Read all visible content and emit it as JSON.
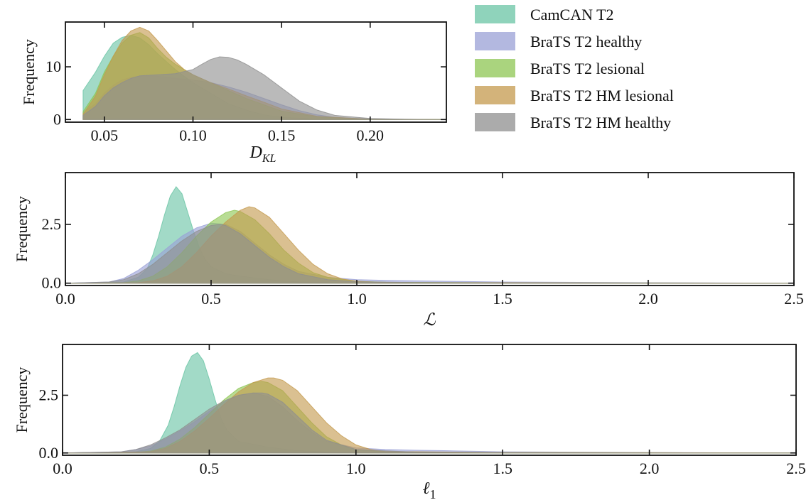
{
  "colors": {
    "CamCAN T2": "#69c4a4",
    "BraTS T2 healthy": "#9aa0d6",
    "BraTS T2 lesional": "#8dc653",
    "BraTS T2 HM lesional": "#c49a4e",
    "BraTS T2 HM healthy": "#8f8f8f"
  },
  "legend": {
    "entries": [
      "CamCAN T2",
      "BraTS T2 healthy",
      "BraTS T2 lesional",
      "BraTS T2 HM lesional",
      "BraTS T2 HM healthy"
    ]
  },
  "chart_data": [
    {
      "type": "area",
      "subtype": "density",
      "xlabel": "D_KL",
      "ylabel": "Frequency",
      "xlim": [
        0.028,
        0.243
      ],
      "ylim": [
        -0.5,
        18.5
      ],
      "xticks": [
        0.05,
        0.1,
        0.15,
        0.2
      ],
      "xtick_labels": [
        "0.05",
        "0.10",
        "0.15",
        "0.20"
      ],
      "yticks": [
        0,
        10
      ],
      "ytick_labels": [
        "0",
        "10"
      ],
      "grid": false,
      "series": [
        {
          "name": "CamCAN T2",
          "x": [
            0.038,
            0.045,
            0.05,
            0.055,
            0.06,
            0.065,
            0.07,
            0.075,
            0.08,
            0.085,
            0.09,
            0.095,
            0.1,
            0.105,
            0.11,
            0.115,
            0.12,
            0.13,
            0.14,
            0.15,
            0.17,
            0.2,
            0.24
          ],
          "y": [
            5.5,
            9,
            12,
            14.5,
            15.6,
            16,
            15.5,
            14.2,
            12.5,
            11,
            9.5,
            8.2,
            7,
            6,
            5,
            4,
            3,
            1.8,
            0.9,
            0.4,
            0.1,
            0.02,
            0
          ]
        },
        {
          "name": "BraTS T2 healthy",
          "x": [
            0.038,
            0.045,
            0.05,
            0.055,
            0.06,
            0.065,
            0.07,
            0.08,
            0.09,
            0.1,
            0.11,
            0.12,
            0.13,
            0.14,
            0.15,
            0.16,
            0.17,
            0.18,
            0.2,
            0.24
          ],
          "y": [
            1.3,
            3,
            5,
            6.5,
            7.5,
            8,
            8.2,
            8.2,
            7.8,
            7.5,
            7,
            6.2,
            5.2,
            4,
            2.8,
            1.7,
            0.9,
            0.4,
            0.1,
            0
          ]
        },
        {
          "name": "BraTS T2 lesional",
          "x": [
            0.038,
            0.045,
            0.05,
            0.055,
            0.06,
            0.065,
            0.07,
            0.075,
            0.08,
            0.085,
            0.09,
            0.1,
            0.11,
            0.12,
            0.13,
            0.14,
            0.15,
            0.17,
            0.2,
            0.24
          ],
          "y": [
            1.5,
            5,
            9,
            12,
            14.5,
            16,
            16.5,
            15.5,
            13.5,
            11.8,
            10.5,
            8.5,
            7,
            5.5,
            4,
            2.8,
            1.6,
            0.5,
            0.05,
            0
          ]
        },
        {
          "name": "BraTS T2 HM lesional",
          "x": [
            0.038,
            0.045,
            0.05,
            0.055,
            0.06,
            0.065,
            0.07,
            0.075,
            0.08,
            0.085,
            0.09,
            0.095,
            0.1,
            0.11,
            0.12,
            0.13,
            0.14,
            0.15,
            0.17,
            0.2,
            0.24
          ],
          "y": [
            1,
            4.5,
            8.5,
            12,
            15,
            16.8,
            17.5,
            16.8,
            15,
            13,
            11,
            9.5,
            8.5,
            7,
            5.8,
            4.5,
            3.3,
            2,
            0.6,
            0.05,
            0
          ]
        },
        {
          "name": "BraTS T2 HM healthy",
          "x": [
            0.038,
            0.045,
            0.05,
            0.055,
            0.06,
            0.065,
            0.07,
            0.08,
            0.09,
            0.1,
            0.105,
            0.11,
            0.115,
            0.12,
            0.125,
            0.13,
            0.14,
            0.15,
            0.16,
            0.17,
            0.18,
            0.2,
            0.22,
            0.24
          ],
          "y": [
            0.8,
            2.5,
            4.5,
            6,
            7,
            7.8,
            8.3,
            8.5,
            8.7,
            9.5,
            10.5,
            11.4,
            11.9,
            11.8,
            11.3,
            10.5,
            8.5,
            6,
            3.5,
            1.8,
            0.8,
            0.2,
            0.05,
            0
          ]
        }
      ]
    },
    {
      "type": "area",
      "subtype": "density",
      "xlabel": "ℒ",
      "ylabel": "Frequency",
      "xlim": [
        0.0,
        2.5
      ],
      "ylim": [
        -0.1,
        4.7
      ],
      "xticks": [
        0.0,
        0.5,
        1.0,
        1.5,
        2.0,
        2.5
      ],
      "xtick_labels": [
        "0.0",
        "0.5",
        "1.0",
        "1.5",
        "2.0",
        "2.5"
      ],
      "yticks": [
        0.0,
        2.5
      ],
      "ytick_labels": [
        "0.0",
        "2.5"
      ],
      "grid": false,
      "series": [
        {
          "name": "CamCAN T2",
          "x": [
            0.0,
            0.2,
            0.25,
            0.28,
            0.3,
            0.32,
            0.34,
            0.36,
            0.38,
            0.4,
            0.42,
            0.44,
            0.46,
            0.48,
            0.5,
            0.55,
            0.6,
            0.7,
            0.8,
            1.0,
            1.5,
            2.5
          ],
          "y": [
            0,
            0.05,
            0.25,
            0.6,
            1.2,
            2.0,
            2.9,
            3.7,
            4.1,
            3.8,
            3.0,
            2.2,
            1.5,
            1.0,
            0.7,
            0.4,
            0.3,
            0.15,
            0.05,
            0,
            0,
            0
          ]
        },
        {
          "name": "BraTS T2 healthy",
          "x": [
            0.0,
            0.15,
            0.2,
            0.25,
            0.3,
            0.35,
            0.4,
            0.45,
            0.5,
            0.55,
            0.6,
            0.65,
            0.7,
            0.75,
            0.8,
            0.9,
            1.0,
            1.1,
            1.2,
            1.5,
            2.0,
            2.5
          ],
          "y": [
            0,
            0.05,
            0.2,
            0.55,
            1.0,
            1.5,
            2.0,
            2.35,
            2.55,
            2.5,
            2.2,
            1.7,
            1.2,
            0.8,
            0.5,
            0.25,
            0.15,
            0.12,
            0.1,
            0.05,
            0.02,
            0
          ]
        },
        {
          "name": "BraTS T2 lesional",
          "x": [
            0.0,
            0.2,
            0.25,
            0.3,
            0.35,
            0.4,
            0.45,
            0.5,
            0.55,
            0.58,
            0.6,
            0.65,
            0.7,
            0.75,
            0.8,
            0.85,
            0.9,
            1.0,
            1.1,
            1.5,
            2.0,
            2.5
          ],
          "y": [
            0,
            0.02,
            0.1,
            0.3,
            0.7,
            1.3,
            2.0,
            2.6,
            3.0,
            3.1,
            3.05,
            2.7,
            2.1,
            1.4,
            0.85,
            0.45,
            0.25,
            0.08,
            0.04,
            0.02,
            0.01,
            0
          ]
        },
        {
          "name": "BraTS T2 HM lesional",
          "x": [
            0.0,
            0.25,
            0.3,
            0.35,
            0.4,
            0.45,
            0.5,
            0.55,
            0.6,
            0.63,
            0.65,
            0.7,
            0.75,
            0.8,
            0.85,
            0.9,
            0.95,
            1.0,
            1.1,
            1.5,
            2.0,
            2.5
          ],
          "y": [
            0,
            0.02,
            0.1,
            0.3,
            0.7,
            1.3,
            2.0,
            2.6,
            3.1,
            3.25,
            3.2,
            2.8,
            2.1,
            1.4,
            0.8,
            0.4,
            0.18,
            0.08,
            0.03,
            0.02,
            0.01,
            0
          ]
        },
        {
          "name": "BraTS T2 HM healthy",
          "x": [
            0.0,
            0.15,
            0.2,
            0.25,
            0.3,
            0.35,
            0.4,
            0.45,
            0.5,
            0.53,
            0.55,
            0.6,
            0.65,
            0.7,
            0.75,
            0.8,
            0.9,
            1.0,
            1.2,
            1.5,
            2.0,
            2.5
          ],
          "y": [
            0,
            0.05,
            0.15,
            0.4,
            0.8,
            1.3,
            1.8,
            2.2,
            2.45,
            2.5,
            2.45,
            2.1,
            1.6,
            1.1,
            0.7,
            0.4,
            0.15,
            0.06,
            0.03,
            0.01,
            0.005,
            0
          ]
        }
      ]
    },
    {
      "type": "area",
      "subtype": "density",
      "xlabel": "ℓ1",
      "ylabel": "Frequency",
      "xlim": [
        0.0,
        2.5
      ],
      "ylim": [
        -0.1,
        4.7
      ],
      "xticks": [
        0.0,
        0.5,
        1.0,
        1.5,
        2.0,
        2.5
      ],
      "xtick_labels": [
        "0.0",
        "0.5",
        "1.0",
        "1.5",
        "2.0",
        "2.5"
      ],
      "yticks": [
        0.0,
        2.5
      ],
      "ytick_labels": [
        "0.0",
        "2.5"
      ],
      "grid": false,
      "series": [
        {
          "name": "CamCAN T2",
          "x": [
            0.0,
            0.25,
            0.3,
            0.33,
            0.36,
            0.38,
            0.4,
            0.42,
            0.44,
            0.46,
            0.48,
            0.5,
            0.52,
            0.54,
            0.56,
            0.6,
            0.7,
            0.8,
            1.0,
            1.5,
            2.5
          ],
          "y": [
            0,
            0.05,
            0.2,
            0.5,
            1.2,
            2.0,
            2.9,
            3.7,
            4.2,
            4.35,
            4.0,
            3.2,
            2.3,
            1.5,
            1.0,
            0.5,
            0.25,
            0.1,
            0,
            0,
            0
          ]
        },
        {
          "name": "BraTS T2 healthy",
          "x": [
            0.0,
            0.2,
            0.25,
            0.3,
            0.35,
            0.4,
            0.45,
            0.5,
            0.55,
            0.6,
            0.65,
            0.7,
            0.75,
            0.8,
            0.85,
            0.9,
            1.0,
            1.1,
            1.2,
            1.3,
            1.5,
            2.0,
            2.5
          ],
          "y": [
            0,
            0.05,
            0.15,
            0.3,
            0.6,
            0.95,
            1.35,
            1.8,
            2.2,
            2.5,
            2.6,
            2.45,
            2.0,
            1.4,
            0.9,
            0.5,
            0.22,
            0.15,
            0.12,
            0.1,
            0.05,
            0.02,
            0
          ]
        },
        {
          "name": "BraTS T2 lesional",
          "x": [
            0.0,
            0.25,
            0.3,
            0.35,
            0.4,
            0.45,
            0.5,
            0.55,
            0.6,
            0.65,
            0.68,
            0.7,
            0.75,
            0.8,
            0.85,
            0.9,
            0.95,
            1.0,
            1.1,
            1.5,
            2.0,
            2.5
          ],
          "y": [
            0,
            0.02,
            0.08,
            0.25,
            0.6,
            1.1,
            1.7,
            2.3,
            2.8,
            3.05,
            3.1,
            3.05,
            2.7,
            2.0,
            1.3,
            0.7,
            0.35,
            0.15,
            0.05,
            0.02,
            0.01,
            0
          ]
        },
        {
          "name": "BraTS T2 HM lesional",
          "x": [
            0.0,
            0.3,
            0.35,
            0.4,
            0.45,
            0.5,
            0.55,
            0.6,
            0.65,
            0.7,
            0.72,
            0.75,
            0.8,
            0.85,
            0.9,
            0.95,
            1.0,
            1.05,
            1.1,
            1.5,
            2.0,
            2.5
          ],
          "y": [
            0,
            0.05,
            0.2,
            0.5,
            0.95,
            1.5,
            2.1,
            2.65,
            3.05,
            3.25,
            3.25,
            3.15,
            2.7,
            2.0,
            1.3,
            0.75,
            0.35,
            0.15,
            0.06,
            0.02,
            0.01,
            0
          ]
        },
        {
          "name": "BraTS T2 HM healthy",
          "x": [
            0.0,
            0.2,
            0.25,
            0.3,
            0.35,
            0.4,
            0.45,
            0.5,
            0.55,
            0.6,
            0.65,
            0.68,
            0.7,
            0.75,
            0.8,
            0.85,
            0.9,
            1.0,
            1.2,
            1.5,
            2.0,
            2.5
          ],
          "y": [
            0,
            0.05,
            0.15,
            0.35,
            0.65,
            1.0,
            1.45,
            1.9,
            2.25,
            2.5,
            2.6,
            2.6,
            2.55,
            2.2,
            1.6,
            1.0,
            0.55,
            0.15,
            0.04,
            0.01,
            0.005,
            0
          ]
        }
      ]
    }
  ]
}
